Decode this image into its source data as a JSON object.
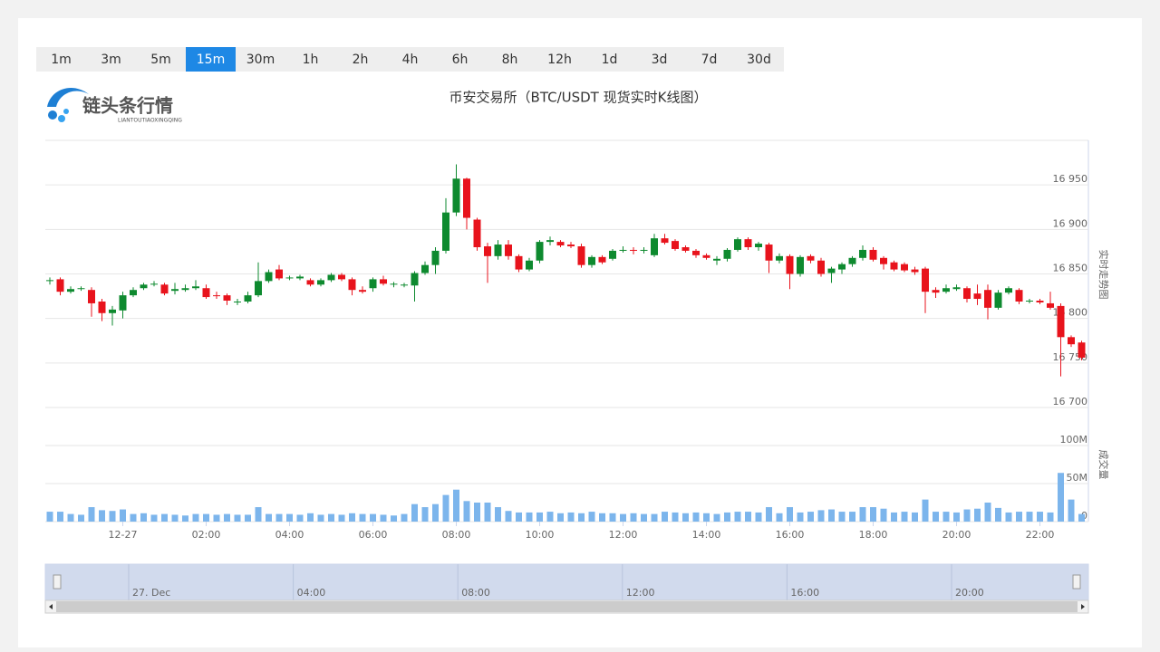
{
  "toolbar": {
    "intervals": [
      "1m",
      "3m",
      "5m",
      "15m",
      "30m",
      "1h",
      "2h",
      "4h",
      "6h",
      "8h",
      "12h",
      "1d",
      "3d",
      "7d",
      "30d"
    ],
    "selected": "15m"
  },
  "logo": {
    "name": "链头条行情",
    "pinyin": "LIANTOUTIAOXINGQING"
  },
  "title": "币安交易所（BTC/USDT 现货实时K线图）",
  "chart_data": [
    {
      "type": "candlestick",
      "ylabel": "实时走势图",
      "categories": [
        null,
        null,
        null,
        null,
        null,
        null,
        null,
        "12-27",
        null,
        null,
        null,
        null,
        null,
        null,
        null,
        "02:00",
        null,
        null,
        null,
        null,
        null,
        null,
        null,
        "04:00",
        null,
        null,
        null,
        null,
        null,
        null,
        null,
        "06:00",
        null,
        null,
        null,
        null,
        null,
        null,
        null,
        "08:00",
        null,
        null,
        null,
        null,
        null,
        null,
        null,
        "10:00",
        null,
        null,
        null,
        null,
        null,
        null,
        null,
        "12:00",
        null,
        null,
        null,
        null,
        null,
        null,
        null,
        "14:00",
        null,
        null,
        null,
        null,
        null,
        null,
        null,
        "16:00",
        null,
        null,
        null,
        null,
        null,
        null,
        null,
        "18:00",
        null,
        null,
        null,
        null,
        null,
        null,
        null,
        "20:00",
        null,
        null,
        null,
        null,
        null,
        null,
        null,
        "22:00",
        null,
        null,
        null,
        null
      ],
      "open": [
        16842,
        16844,
        16830,
        16833,
        16832,
        16819,
        16806,
        16809,
        16826,
        16834,
        16838,
        16838,
        16831,
        16832,
        16834,
        16834,
        16826,
        16826,
        16818,
        16819,
        16826,
        16842,
        16855,
        16845,
        16845,
        16843,
        16838,
        16843,
        16849,
        16844,
        16832,
        16834,
        16844,
        16838,
        16837,
        16837,
        16851,
        16860,
        16876,
        16919,
        16957,
        16911,
        16881,
        16870,
        16883,
        16870,
        16855,
        16865,
        16886,
        16886,
        16883,
        16881,
        16860,
        16869,
        16867,
        16876,
        16877,
        16876,
        16871,
        16890,
        16887,
        16880,
        16876,
        16871,
        16865,
        16867,
        16877,
        16889,
        16880,
        16883,
        16865,
        16870,
        16850,
        16870,
        16865,
        16851,
        16855,
        16861,
        16868,
        16877,
        16868,
        16863,
        16861,
        16855,
        16856,
        16832,
        16830,
        16833,
        16834,
        16828,
        16832,
        16812,
        16829,
        16832,
        16819,
        16820,
        16817,
        16814,
        16779,
        16773
      ],
      "high": [
        16846,
        16846,
        16836,
        16836,
        16835,
        16822,
        16814,
        16830,
        16835,
        16840,
        16842,
        16840,
        16840,
        16838,
        16843,
        16838,
        16830,
        16828,
        16822,
        16830,
        16863,
        16855,
        16860,
        16848,
        16849,
        16845,
        16845,
        16851,
        16851,
        16846,
        16836,
        16846,
        16848,
        16841,
        16840,
        16853,
        16864,
        16880,
        16935,
        16973,
        16958,
        16913,
        16885,
        16888,
        16888,
        16872,
        16868,
        16888,
        16892,
        16888,
        16886,
        16884,
        16871,
        16871,
        16878,
        16881,
        16880,
        16880,
        16895,
        16895,
        16889,
        16882,
        16878,
        16873,
        16870,
        16879,
        16891,
        16891,
        16886,
        16885,
        16873,
        16872,
        16871,
        16872,
        16868,
        16858,
        16863,
        16870,
        16882,
        16880,
        16870,
        16865,
        16863,
        16858,
        16858,
        16835,
        16838,
        16838,
        16836,
        16838,
        16838,
        16832,
        16836,
        16834,
        16822,
        16822,
        16830,
        16817,
        16781,
        16775
      ],
      "low": [
        16838,
        16826,
        16828,
        16831,
        16802,
        16797,
        16792,
        16800,
        16824,
        16832,
        16836,
        16826,
        16827,
        16830,
        16832,
        16822,
        16822,
        16815,
        16815,
        16817,
        16824,
        16840,
        16843,
        16843,
        16843,
        16836,
        16836,
        16841,
        16842,
        16826,
        16828,
        16830,
        16837,
        16835,
        16835,
        16819,
        16849,
        16850,
        16873,
        16915,
        16900,
        16876,
        16840,
        16866,
        16866,
        16852,
        16853,
        16862,
        16882,
        16880,
        16879,
        16857,
        16857,
        16861,
        16865,
        16874,
        16872,
        16873,
        16869,
        16883,
        16876,
        16874,
        16868,
        16866,
        16860,
        16864,
        16875,
        16877,
        16876,
        16851,
        16862,
        16833,
        16847,
        16862,
        16847,
        16840,
        16850,
        16858,
        16865,
        16864,
        16855,
        16853,
        16852,
        16849,
        16806,
        16823,
        16828,
        16831,
        16818,
        16815,
        16799,
        16810,
        16827,
        16816,
        16817,
        16816,
        16810,
        16735,
        16768,
        16753
      ],
      "close": [
        16843,
        16830,
        16833,
        16834,
        16817,
        16806,
        16810,
        16826,
        16832,
        16838,
        16839,
        16828,
        16833,
        16834,
        16836,
        16824,
        16825,
        16820,
        16819,
        16826,
        16842,
        16852,
        16845,
        16846,
        16847,
        16838,
        16843,
        16849,
        16844,
        16832,
        16830,
        16844,
        16839,
        16839,
        16838,
        16851,
        16860,
        16876,
        16919,
        16957,
        16913,
        16880,
        16870,
        16883,
        16870,
        16855,
        16865,
        16886,
        16888,
        16882,
        16881,
        16860,
        16869,
        16863,
        16876,
        16877,
        16876,
        16877,
        16890,
        16885,
        16878,
        16876,
        16871,
        16868,
        16867,
        16877,
        16889,
        16880,
        16884,
        16865,
        16870,
        16850,
        16869,
        16865,
        16850,
        16856,
        16861,
        16868,
        16877,
        16866,
        16861,
        16855,
        16854,
        16852,
        16830,
        16829,
        16834,
        16835,
        16822,
        16822,
        16812,
        16829,
        16834,
        16819,
        16820,
        16818,
        16812,
        16779,
        16771,
        16756
      ],
      "up_color": "#0e8a2f",
      "down_color": "#e8131c",
      "ylim": [
        16700,
        17000
      ],
      "yticks": [
        {
          "value": 16700,
          "label": "16 700"
        },
        {
          "value": 16750,
          "label": "16 750"
        },
        {
          "value": 16800,
          "label": "16 800"
        },
        {
          "value": 16850,
          "label": "16 850"
        },
        {
          "value": 16900,
          "label": "16 900"
        },
        {
          "value": 16950,
          "label": "16 950"
        }
      ],
      "grid": true
    },
    {
      "type": "bar",
      "ylabel": "成交量",
      "color": "#7cb5ec",
      "values": [
        13000000,
        13000000,
        10000000,
        9000000,
        19000000,
        15000000,
        14000000,
        16000000,
        10000000,
        11000000,
        9000000,
        10000000,
        9000000,
        8000000,
        10000000,
        10000000,
        9000000,
        10000000,
        9000000,
        9000000,
        19000000,
        10000000,
        10000000,
        10000000,
        9000000,
        11000000,
        9000000,
        10000000,
        9000000,
        11000000,
        10000000,
        10000000,
        9000000,
        8000000,
        10000000,
        23000000,
        19000000,
        23000000,
        35000000,
        42000000,
        27000000,
        25000000,
        25000000,
        19000000,
        14000000,
        12000000,
        12000000,
        12000000,
        13000000,
        11000000,
        12000000,
        11000000,
        13000000,
        11000000,
        11000000,
        10000000,
        11000000,
        10000000,
        10000000,
        13000000,
        12000000,
        11000000,
        12000000,
        11000000,
        10000000,
        12000000,
        13000000,
        13000000,
        12000000,
        19000000,
        11000000,
        19000000,
        12000000,
        13000000,
        15000000,
        16000000,
        13000000,
        13000000,
        19000000,
        19000000,
        17000000,
        12000000,
        13000000,
        12000000,
        29000000,
        13000000,
        13000000,
        12000000,
        16000000,
        17000000,
        25000000,
        18000000,
        12000000,
        13000000,
        13000000,
        13000000,
        12000000,
        64000000,
        29000000,
        10000000
      ],
      "ylim": [
        0,
        100000000
      ],
      "yticks": [
        0,
        {
          "value": 50000000,
          "label": "50M"
        },
        {
          "value": 100000000,
          "label": "100M"
        }
      ],
      "grid": true
    }
  ],
  "navigator": {
    "labels": [
      "27. Dec",
      "04:00",
      "08:00",
      "12:00",
      "16:00",
      "20:00"
    ]
  }
}
